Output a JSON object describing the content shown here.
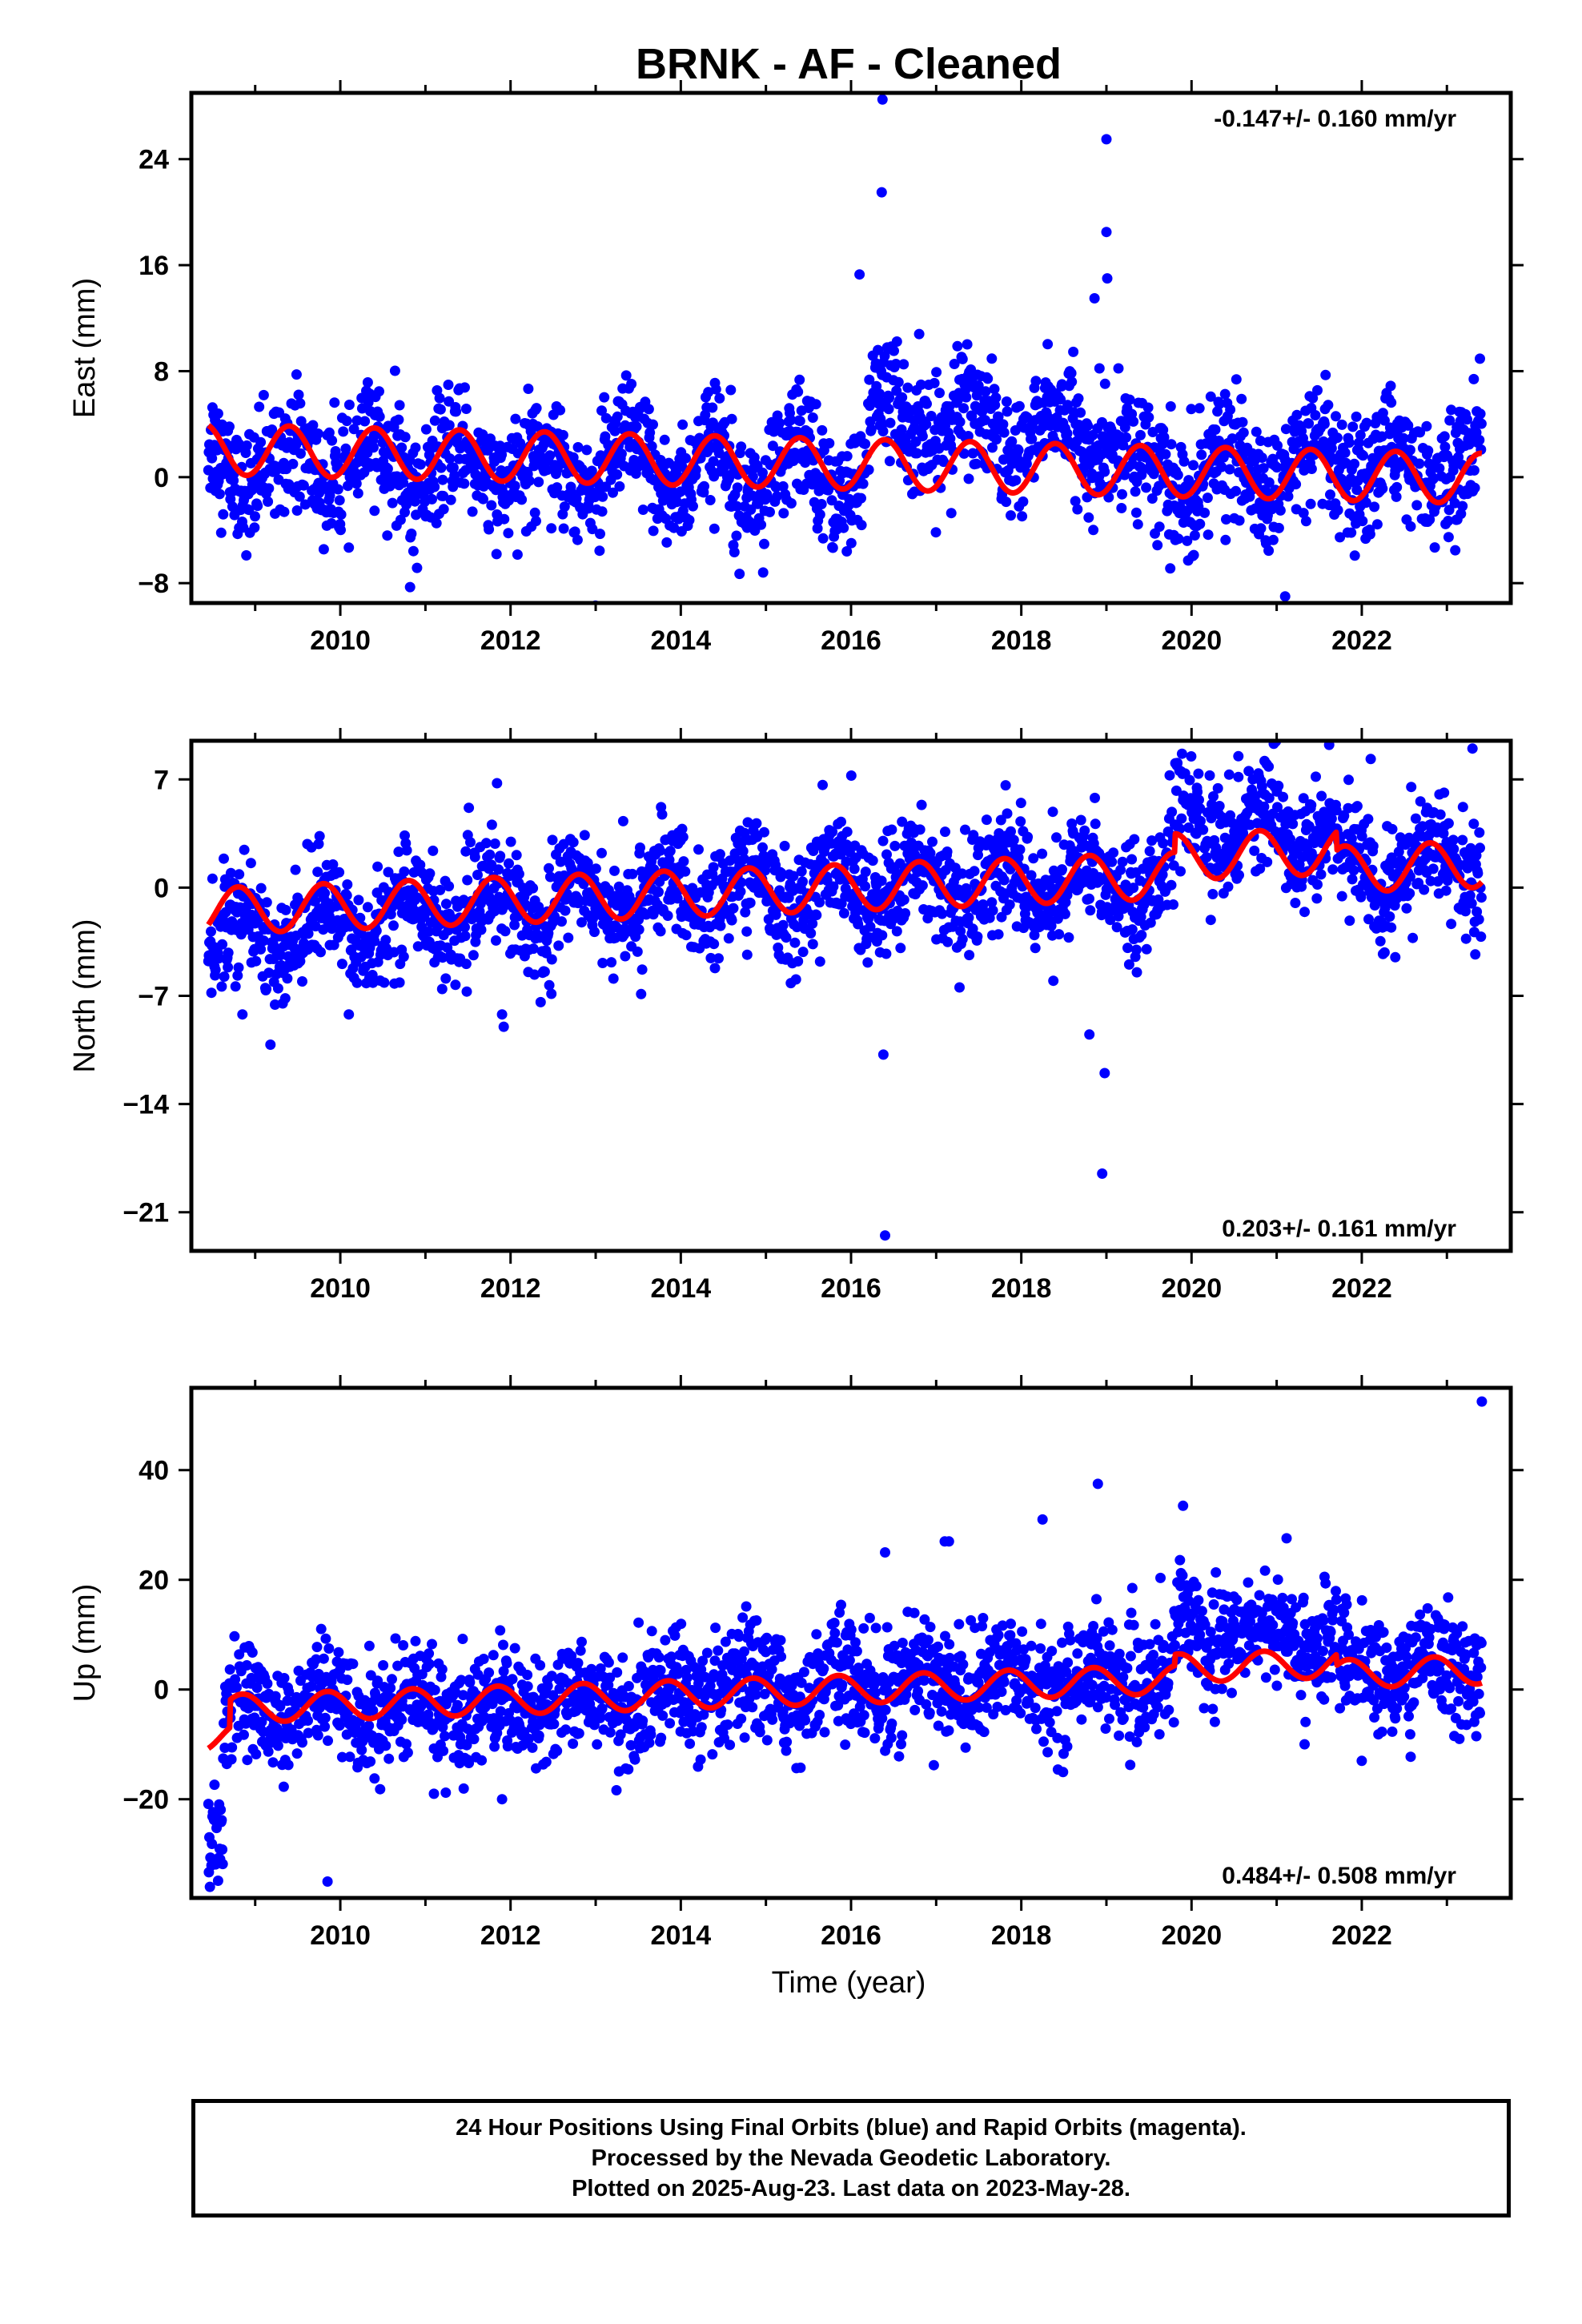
{
  "title": "BRNK  - AF - Cleaned",
  "colors": {
    "final_orbits": "#0000ff",
    "model": "#ff0000",
    "frame": "#000000"
  },
  "xlabel": "Time (year)",
  "chart_data": [
    {
      "type": "scatter",
      "panel": "east",
      "ylabel": "East (mm)",
      "ylim": [
        -9.5,
        29
      ],
      "yticks": [
        -8,
        0,
        8,
        16,
        24
      ],
      "xlim": [
        2008.25,
        2023.75
      ],
      "xticks": [
        2010,
        2012,
        2014,
        2016,
        2018,
        2020,
        2022
      ],
      "rate": "-0.147+/- 0.160 mm/yr",
      "rate_position": "top-right",
      "time_span": [
        2008.45,
        2023.41
      ],
      "series": [
        {
          "kind": "points",
          "description_values": {
            "baseline_mm": [
              [
                2008.45,
                1.0
              ],
              [
                2016.2,
                0.5
              ],
              [
                2016.21,
                4.5
              ],
              [
                2019.3,
                2.5
              ],
              [
                2019.31,
                0.0
              ],
              [
                2023.41,
                1.0
              ]
            ],
            "scatter_mm": 2.2
          },
          "outliers": [
            [
              2016.37,
              28.5
            ],
            [
              2016.36,
              21.5
            ],
            [
              2016.1,
              15.3
            ],
            [
              2019.0,
              25.5
            ],
            [
              2019.0,
              18.5
            ],
            [
              2019.01,
              15.0
            ],
            [
              2018.86,
              13.5
            ],
            [
              2016.8,
              10.8
            ],
            [
              2010.82,
              -8.3
            ],
            [
              2021.1,
              -9.0
            ],
            [
              2015.95,
              -5.6
            ]
          ]
        },
        {
          "kind": "model",
          "offset_mm": 1.0,
          "rate_mm_yr": -0.147,
          "amplitude_mm": 1.9,
          "phase_yr": 0.15
        }
      ]
    },
    {
      "type": "scatter",
      "panel": "north",
      "ylabel": "North (mm)",
      "ylim": [
        -23.5,
        9.5
      ],
      "yticks": [
        -21,
        -14,
        -7,
        0,
        7
      ],
      "xlim": [
        2008.25,
        2023.75
      ],
      "xticks": [
        2010,
        2012,
        2014,
        2016,
        2018,
        2020,
        2022
      ],
      "rate": "0.203+/- 0.161 mm/yr",
      "rate_position": "bottom-right",
      "time_span": [
        2008.45,
        2023.41
      ],
      "series": [
        {
          "kind": "points",
          "description_values": {
            "baseline_mm": [
              [
                2008.45,
                -3.5
              ],
              [
                2012.0,
                -1.0
              ],
              [
                2016.0,
                0.0
              ],
              [
                2019.8,
                0.5
              ],
              [
                2019.81,
                4.5
              ],
              [
                2021.7,
                3.5
              ],
              [
                2021.71,
                1.0
              ],
              [
                2023.41,
                1.5
              ]
            ],
            "scatter_mm": 1.8
          },
          "outliers": [
            [
              2016.4,
              -22.5
            ],
            [
              2016.38,
              -10.8
            ],
            [
              2018.95,
              -18.5
            ],
            [
              2018.98,
              -12.0
            ],
            [
              2018.8,
              -9.5
            ],
            [
              2011.92,
              -9.0
            ],
            [
              2011.9,
              -8.2
            ],
            [
              2008.85,
              -8.2
            ],
            [
              2010.1,
              -8.2
            ],
            [
              2023.3,
              9.0
            ],
            [
              2020.55,
              8.5
            ]
          ]
        },
        {
          "kind": "model",
          "offset_mm": 0.0,
          "rate_mm_yr": 0.203,
          "amplitude_mm": 1.5,
          "phase_yr": 0.55
        }
      ]
    },
    {
      "type": "scatter",
      "panel": "up",
      "ylabel": "Up (mm)",
      "ylim": [
        -38,
        55
      ],
      "yticks": [
        -20,
        0,
        20,
        40
      ],
      "xlim": [
        2008.25,
        2023.75
      ],
      "xticks": [
        2010,
        2012,
        2014,
        2016,
        2018,
        2020,
        2022
      ],
      "rate": "0.484+/- 0.508 mm/yr",
      "rate_position": "bottom-right",
      "time_span": [
        2008.45,
        2023.41
      ],
      "series": [
        {
          "kind": "points",
          "description_values": {
            "baseline_mm": [
              [
                2008.45,
                -30.0
              ],
              [
                2008.62,
                -26.0
              ],
              [
                2008.63,
                -4.0
              ],
              [
                2012.0,
                -3.0
              ],
              [
                2016.0,
                1.0
              ],
              [
                2019.8,
                2.0
              ],
              [
                2019.81,
                12.0
              ],
              [
                2021.7,
                9.0
              ],
              [
                2021.71,
                3.0
              ],
              [
                2023.41,
                4.0
              ]
            ],
            "scatter_mm": 5.0
          },
          "outliers": [
            [
              2023.41,
              52.5
            ],
            [
              2018.9,
              37.5
            ],
            [
              2019.9,
              33.5
            ],
            [
              2018.25,
              31.0
            ],
            [
              2016.4,
              25.0
            ],
            [
              2017.1,
              27.0
            ],
            [
              2017.15,
              27.0
            ],
            [
              2009.85,
              -35.0
            ],
            [
              2011.9,
              -20.0
            ],
            [
              2011.1,
              -19.0
            ],
            [
              2022.0,
              -13.0
            ]
          ]
        },
        {
          "kind": "model",
          "offset_mm": 0.0,
          "rate_mm_yr": 0.484,
          "amplitude_mm": 2.6,
          "phase_yr": 0.6
        }
      ]
    }
  ],
  "footer": {
    "line1": "24 Hour Positions Using Final Orbits (blue) and Rapid Orbits (magenta).",
    "line2": "Processed by the Nevada Geodetic Laboratory.",
    "line3": "Plotted on 2025-Aug-23. Last data on 2023-May-28."
  }
}
